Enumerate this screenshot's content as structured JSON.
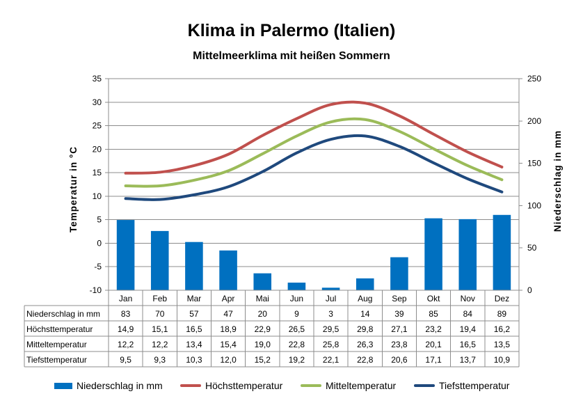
{
  "chart_data": {
    "type": "bar",
    "title": "Klima in Palermo (Italien)",
    "subtitle": "Mittelmeerklima mit heißen Sommern",
    "ylabel_left": "Temperatur in °C",
    "ylabel_right": "Niederschlag in mm",
    "ylim_left": [
      -10,
      35
    ],
    "ylim_right": [
      0,
      250
    ],
    "yticks_left": [
      "35",
      "30",
      "25",
      "20",
      "15",
      "10",
      "5",
      "0",
      "-5",
      "-10"
    ],
    "yticks_right": [
      "250",
      "200",
      "150",
      "100",
      "50",
      "0"
    ],
    "grid": true,
    "legend_position": "bottom",
    "categories": [
      "Jan",
      "Feb",
      "Mar",
      "Apr",
      "Mai",
      "Jun",
      "Jul",
      "Aug",
      "Sep",
      "Okt",
      "Nov",
      "Dez"
    ],
    "series": [
      {
        "name": "Niederschlag in mm",
        "kind": "bar",
        "axis": "right",
        "color": "#0070C0",
        "values": [
          83,
          70,
          57,
          47,
          20,
          9,
          3,
          14,
          39,
          85,
          84,
          89
        ],
        "labels": [
          "83",
          "70",
          "57",
          "47",
          "20",
          "9",
          "3",
          "14",
          "39",
          "85",
          "84",
          "89"
        ]
      },
      {
        "name": "Höchsttemperatur",
        "kind": "line",
        "axis": "left",
        "color": "#C0504D",
        "values": [
          14.9,
          15.1,
          16.5,
          18.9,
          22.9,
          26.5,
          29.5,
          29.8,
          27.1,
          23.2,
          19.4,
          16.2
        ],
        "labels": [
          "14,9",
          "15,1",
          "16,5",
          "18,9",
          "22,9",
          "26,5",
          "29,5",
          "29,8",
          "27,1",
          "23,2",
          "19,4",
          "16,2"
        ]
      },
      {
        "name": "Mitteltemperatur",
        "kind": "line",
        "axis": "left",
        "color": "#9BBB59",
        "values": [
          12.2,
          12.2,
          13.4,
          15.4,
          19.0,
          22.8,
          25.8,
          26.3,
          23.8,
          20.1,
          16.5,
          13.5
        ],
        "labels": [
          "12,2",
          "12,2",
          "13,4",
          "15,4",
          "19,0",
          "22,8",
          "25,8",
          "26,3",
          "23,8",
          "20,1",
          "16,5",
          "13,5"
        ]
      },
      {
        "name": "Tiefsttemperatur",
        "kind": "line",
        "axis": "left",
        "color": "#1F497D",
        "values": [
          9.5,
          9.3,
          10.3,
          12.0,
          15.2,
          19.2,
          22.1,
          22.8,
          20.6,
          17.1,
          13.7,
          10.9
        ],
        "labels": [
          "9,5",
          "9,3",
          "10,3",
          "12,0",
          "15,2",
          "19,2",
          "22,1",
          "22,8",
          "20,6",
          "17,1",
          "13,7",
          "10,9"
        ]
      }
    ]
  }
}
